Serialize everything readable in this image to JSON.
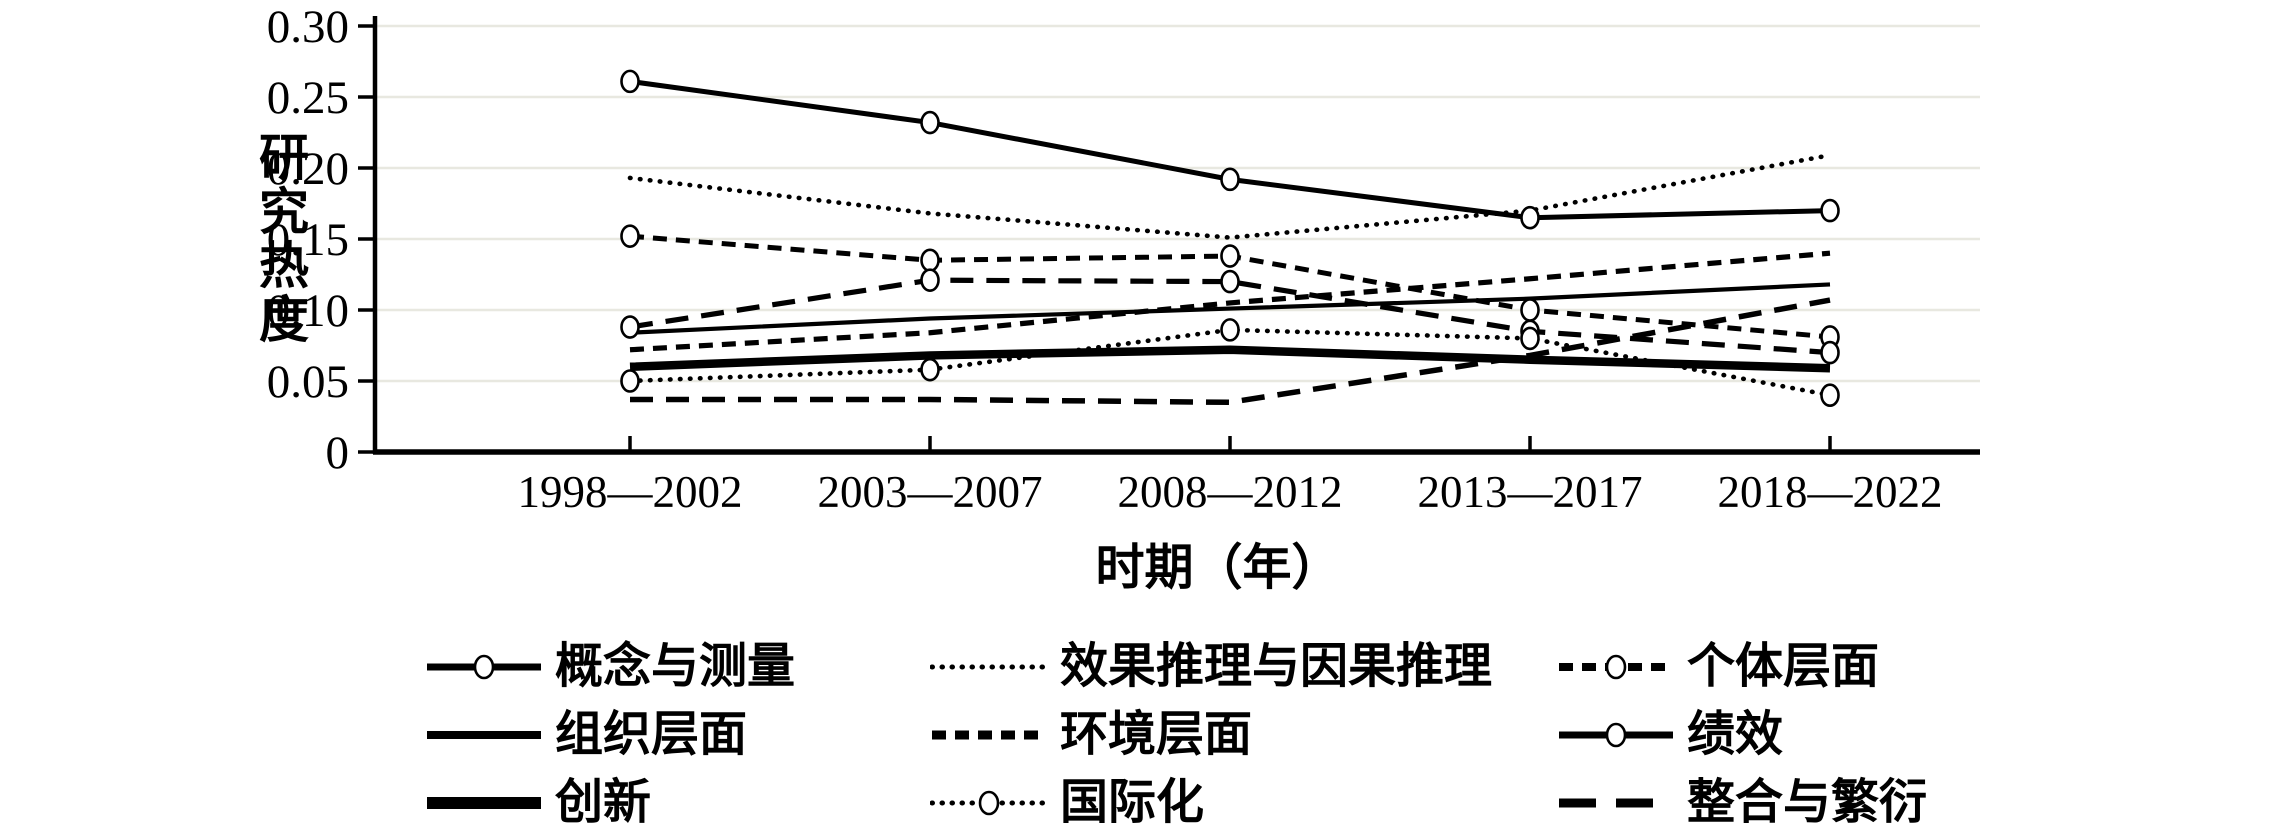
{
  "chart_data": {
    "type": "line",
    "title": "",
    "xlabel": "时期（年）",
    "ylabel": "研究热度",
    "categories": [
      "1998—2002",
      "2003—2007",
      "2008—2012",
      "2013—2017",
      "2018—2022"
    ],
    "ylim": [
      0,
      0.3
    ],
    "ytick_labels": [
      "0",
      "0.05",
      "0.10",
      "0.15",
      "0.20",
      "0.25",
      "0.30"
    ],
    "ytick_values": [
      0,
      0.05,
      0.1,
      0.15,
      0.2,
      0.25,
      0.3
    ],
    "grid": "horizontal-light",
    "legend_position": "bottom",
    "colors": {
      "line": "#000000",
      "gridline": "#e8e8e0",
      "marker_fill": "#ffffff",
      "background": "#ffffff"
    },
    "series": [
      {
        "name": "概念与测量",
        "values": [
          0.261,
          0.232,
          0.192,
          0.165,
          0.17
        ],
        "line": {
          "dash": "solid",
          "width": 5.0,
          "marker": true
        },
        "legend_line": {
          "dash": "solid",
          "width": 7,
          "marker": true
        }
      },
      {
        "name": "效果推理与因果推理",
        "values": [
          0.193,
          0.168,
          0.151,
          0.17,
          0.209
        ],
        "line": {
          "dash": "dot",
          "width": 4.6,
          "marker": false
        },
        "legend_line": {
          "dash": "dot",
          "width": 5,
          "marker": false
        }
      },
      {
        "name": "个体层面",
        "values": [
          0.152,
          0.135,
          0.138,
          0.1,
          0.081
        ],
        "line": {
          "dash": "dash",
          "width": 5.0,
          "marker": true
        },
        "legend_line": {
          "dash": "dash",
          "width": 8,
          "marker": true
        }
      },
      {
        "name": "组织层面",
        "values": [
          0.084,
          0.094,
          0.101,
          0.108,
          0.118
        ],
        "line": {
          "dash": "solid",
          "width": 4.2,
          "marker": false
        },
        "legend_line": {
          "dash": "solid",
          "width": 8,
          "marker": false
        }
      },
      {
        "name": "环境层面",
        "values": [
          0.072,
          0.084,
          0.105,
          0.122,
          0.14
        ],
        "line": {
          "dash": "dash",
          "width": 5.2,
          "marker": false
        },
        "legend_line": {
          "dash": "dash",
          "width": 9,
          "marker": false
        }
      },
      {
        "name": "绩效",
        "values": [
          0.088,
          0.121,
          0.12,
          0.085,
          0.07
        ],
        "line": {
          "dash": "longdash",
          "width": 5.2,
          "marker": true
        },
        "legend_line": {
          "dash": "solid",
          "width": 7,
          "marker": true
        }
      },
      {
        "name": "创新",
        "values": [
          0.06,
          0.068,
          0.072,
          0.065,
          0.059
        ],
        "line": {
          "dash": "solid",
          "width": 8.5,
          "marker": false
        },
        "legend_line": {
          "dash": "solid",
          "width": 12,
          "marker": false
        }
      },
      {
        "name": "国际化",
        "values": [
          0.05,
          0.058,
          0.086,
          0.08,
          0.04
        ],
        "line": {
          "dash": "dot",
          "width": 4.6,
          "marker": true
        },
        "legend_line": {
          "dash": "dot",
          "width": 5,
          "marker": true
        }
      },
      {
        "name": "整合与繁衍",
        "values": [
          0.037,
          0.037,
          0.035,
          0.068,
          0.107
        ],
        "line": {
          "dash": "longdash",
          "width": 5.5,
          "marker": false
        },
        "legend_line": {
          "dash": "xlongdash",
          "width": 9,
          "marker": false
        }
      }
    ]
  }
}
